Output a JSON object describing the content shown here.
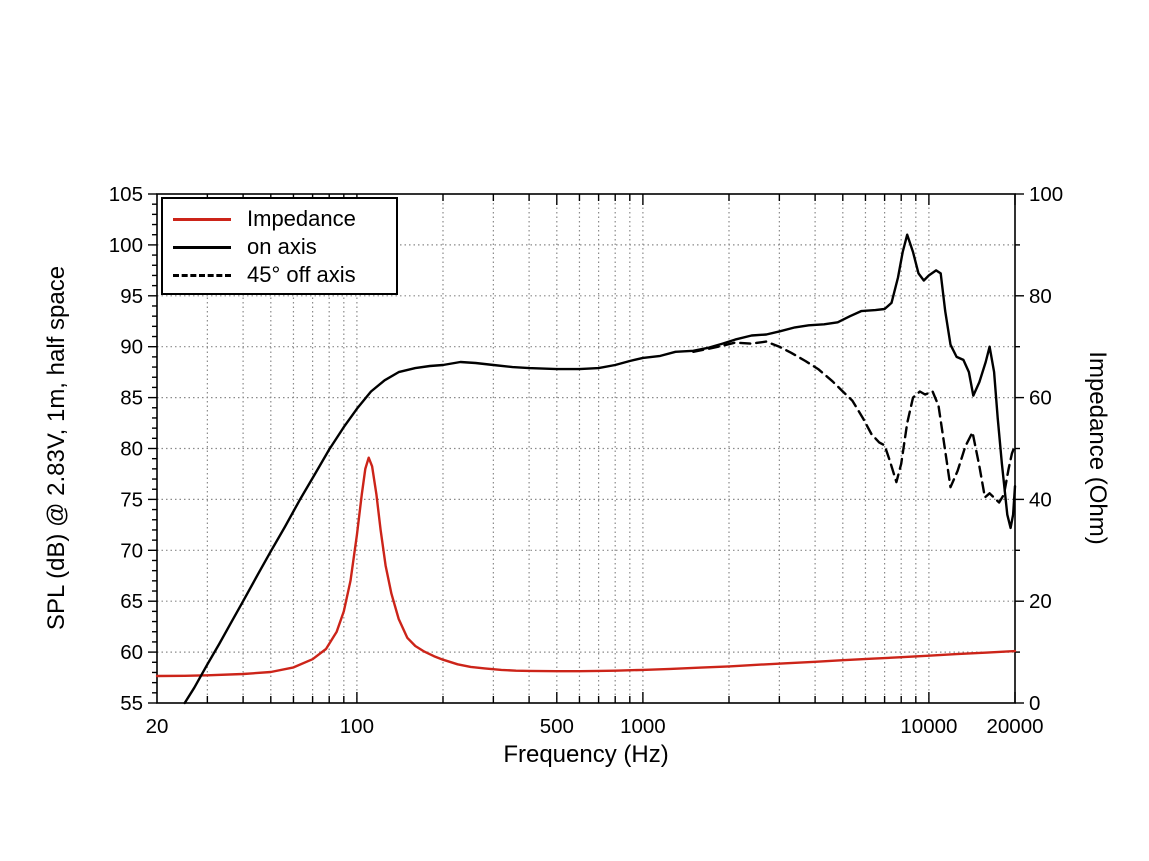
{
  "figure": {
    "xlabel": "Frequency (Hz)",
    "ylabel_left": "SPL (dB) @ 2.83V, 1m, half space",
    "ylabel_right": "Impedance (Ohm)"
  },
  "legend": {
    "items": [
      {
        "label": "Impedance",
        "color": "#cc2419",
        "style": "solid"
      },
      {
        "label": "on axis",
        "color": "#000000",
        "style": "solid"
      },
      {
        "label": "45° off axis",
        "color": "#000000",
        "style": "dashed"
      }
    ],
    "position": "top-left"
  },
  "chart_data": {
    "type": "line",
    "x_scale": "log",
    "xlim": [
      20,
      20000
    ],
    "ylim_left": [
      55,
      105
    ],
    "ylim_right": [
      0,
      100
    ],
    "xlabel": "Frequency (Hz)",
    "ylabel_left": "SPL (dB) @ 2.83V, 1m, half space",
    "ylabel_right": "Impedance (Ohm)",
    "grid": "dotted",
    "grid_color": "#8a8a8a",
    "axis_color": "#000000",
    "x_tick_labels": [
      {
        "f": 20,
        "label": "20"
      },
      {
        "f": 100,
        "label": "100"
      },
      {
        "f": 500,
        "label": "500"
      },
      {
        "f": 1000,
        "label": "1000"
      },
      {
        "f": 10000,
        "label": "10000"
      },
      {
        "f": 20000,
        "label": "20000"
      }
    ],
    "x_gridlines": [
      30,
      40,
      50,
      60,
      70,
      80,
      90,
      100,
      200,
      300,
      400,
      500,
      600,
      700,
      800,
      900,
      1000,
      2000,
      3000,
      4000,
      5000,
      6000,
      7000,
      8000,
      9000,
      10000
    ],
    "x_minor_ticks": [
      30,
      40,
      50,
      60,
      70,
      80,
      90,
      100,
      200,
      300,
      400,
      500,
      600,
      700,
      800,
      900,
      1000,
      2000,
      3000,
      4000,
      5000,
      6000,
      7000,
      8000,
      9000,
      10000,
      20000
    ],
    "y_left_gridlines": [
      60,
      65,
      70,
      75,
      80,
      85,
      90,
      95,
      100
    ],
    "y_left_tick_labels": [
      "55",
      "60",
      "65",
      "70",
      "75",
      "80",
      "85",
      "90",
      "95",
      "100",
      "105"
    ],
    "y_left_major_step": 5,
    "y_left_minor_step": 1,
    "y_right_tick_labels": [
      "0",
      "20",
      "40",
      "60",
      "80",
      "100"
    ],
    "y_right_major_step": 20,
    "y_right_minor_step": 10,
    "series": [
      {
        "name": "Impedance",
        "axis": "right",
        "unit": "Ohm",
        "color": "#cc2419",
        "dash": "solid",
        "points": [
          [
            20,
            5.3
          ],
          [
            25,
            5.35
          ],
          [
            30,
            5.45
          ],
          [
            40,
            5.7
          ],
          [
            50,
            6.1
          ],
          [
            60,
            7.0
          ],
          [
            70,
            8.6
          ],
          [
            78,
            10.6
          ],
          [
            85,
            14
          ],
          [
            90,
            18
          ],
          [
            95,
            24
          ],
          [
            100,
            33
          ],
          [
            104,
            41
          ],
          [
            107,
            46
          ],
          [
            110,
            48.2
          ],
          [
            113,
            46.5
          ],
          [
            117,
            41
          ],
          [
            121,
            34
          ],
          [
            126,
            27
          ],
          [
            132,
            21.5
          ],
          [
            140,
            16.5
          ],
          [
            150,
            12.8
          ],
          [
            160,
            11.2
          ],
          [
            172,
            10.1
          ],
          [
            186,
            9.2
          ],
          [
            200,
            8.5
          ],
          [
            225,
            7.6
          ],
          [
            250,
            7.1
          ],
          [
            280,
            6.8
          ],
          [
            320,
            6.5
          ],
          [
            360,
            6.35
          ],
          [
            400,
            6.3
          ],
          [
            500,
            6.25
          ],
          [
            600,
            6.25
          ],
          [
            700,
            6.3
          ],
          [
            800,
            6.35
          ],
          [
            1000,
            6.5
          ],
          [
            1250,
            6.7
          ],
          [
            1600,
            6.95
          ],
          [
            2000,
            7.2
          ],
          [
            2500,
            7.5
          ],
          [
            3150,
            7.8
          ],
          [
            4000,
            8.1
          ],
          [
            5000,
            8.4
          ],
          [
            6300,
            8.7
          ],
          [
            8000,
            9.0
          ],
          [
            10000,
            9.3
          ],
          [
            12500,
            9.6
          ],
          [
            16000,
            9.9
          ],
          [
            20000,
            10.2
          ]
        ]
      },
      {
        "name": "on axis",
        "axis": "left",
        "unit": "dB",
        "color": "#000000",
        "dash": "solid",
        "points": [
          [
            25,
            55
          ],
          [
            27,
            56.5
          ],
          [
            30,
            58.8
          ],
          [
            33,
            60.8
          ],
          [
            36,
            62.7
          ],
          [
            40,
            65
          ],
          [
            45,
            67.6
          ],
          [
            50,
            69.9
          ],
          [
            56,
            72.3
          ],
          [
            63,
            74.9
          ],
          [
            71,
            77.4
          ],
          [
            80,
            79.9
          ],
          [
            90,
            82.1
          ],
          [
            100,
            83.9
          ],
          [
            112,
            85.6
          ],
          [
            125,
            86.7
          ],
          [
            140,
            87.5
          ],
          [
            160,
            87.9
          ],
          [
            180,
            88.1
          ],
          [
            200,
            88.2
          ],
          [
            230,
            88.5
          ],
          [
            260,
            88.4
          ],
          [
            300,
            88.2
          ],
          [
            350,
            88.0
          ],
          [
            400,
            87.9
          ],
          [
            500,
            87.8
          ],
          [
            600,
            87.8
          ],
          [
            700,
            87.9
          ],
          [
            800,
            88.2
          ],
          [
            900,
            88.6
          ],
          [
            1000,
            88.9
          ],
          [
            1150,
            89.1
          ],
          [
            1300,
            89.5
          ],
          [
            1500,
            89.6
          ],
          [
            1700,
            89.9
          ],
          [
            1900,
            90.3
          ],
          [
            2100,
            90.7
          ],
          [
            2400,
            91.1
          ],
          [
            2700,
            91.2
          ],
          [
            3000,
            91.5
          ],
          [
            3400,
            91.9
          ],
          [
            3800,
            92.1
          ],
          [
            4300,
            92.2
          ],
          [
            4800,
            92.4
          ],
          [
            5300,
            93.0
          ],
          [
            5800,
            93.5
          ],
          [
            6500,
            93.6
          ],
          [
            7000,
            93.7
          ],
          [
            7400,
            94.3
          ],
          [
            7800,
            96.8
          ],
          [
            8100,
            99.3
          ],
          [
            8400,
            101.0
          ],
          [
            8800,
            99.3
          ],
          [
            9200,
            97.2
          ],
          [
            9600,
            96.5
          ],
          [
            10000,
            97.0
          ],
          [
            10600,
            97.5
          ],
          [
            11000,
            97.2
          ],
          [
            11400,
            93.5
          ],
          [
            11900,
            90.2
          ],
          [
            12500,
            89.0
          ],
          [
            13200,
            88.7
          ],
          [
            13800,
            87.5
          ],
          [
            14300,
            85.2
          ],
          [
            15000,
            86.5
          ],
          [
            15800,
            88.5
          ],
          [
            16300,
            90.0
          ],
          [
            16900,
            87.5
          ],
          [
            17400,
            83.0
          ],
          [
            18000,
            78.5
          ],
          [
            18800,
            73.5
          ],
          [
            19300,
            72.2
          ],
          [
            19700,
            73.5
          ],
          [
            20000,
            76.3
          ]
        ]
      },
      {
        "name": "45° off axis",
        "axis": "left",
        "unit": "dB",
        "color": "#000000",
        "dash": "dashed",
        "points": [
          [
            1500,
            89.5
          ],
          [
            1700,
            89.8
          ],
          [
            1900,
            90.1
          ],
          [
            2100,
            90.4
          ],
          [
            2400,
            90.3
          ],
          [
            2700,
            90.5
          ],
          [
            3000,
            90.0
          ],
          [
            3300,
            89.4
          ],
          [
            3700,
            88.6
          ],
          [
            4100,
            87.8
          ],
          [
            4600,
            86.6
          ],
          [
            5000,
            85.6
          ],
          [
            5400,
            84.7
          ],
          [
            5900,
            82.9
          ],
          [
            6300,
            81.4
          ],
          [
            6700,
            80.6
          ],
          [
            7000,
            80.3
          ],
          [
            7300,
            78.8
          ],
          [
            7700,
            76.7
          ],
          [
            8000,
            78.5
          ],
          [
            8400,
            82.5
          ],
          [
            8800,
            85.0
          ],
          [
            9300,
            85.6
          ],
          [
            9700,
            85.3
          ],
          [
            10300,
            85.6
          ],
          [
            10800,
            84.2
          ],
          [
            11300,
            80.5
          ],
          [
            11900,
            76.2
          ],
          [
            12600,
            77.8
          ],
          [
            13400,
            80.2
          ],
          [
            14200,
            81.6
          ],
          [
            15000,
            78.3
          ],
          [
            15700,
            75.2
          ],
          [
            16300,
            75.6
          ],
          [
            17000,
            75.1
          ],
          [
            17600,
            74.7
          ],
          [
            18300,
            75.5
          ],
          [
            19000,
            78.0
          ],
          [
            19500,
            79.5
          ],
          [
            20000,
            80.3
          ]
        ]
      }
    ]
  }
}
